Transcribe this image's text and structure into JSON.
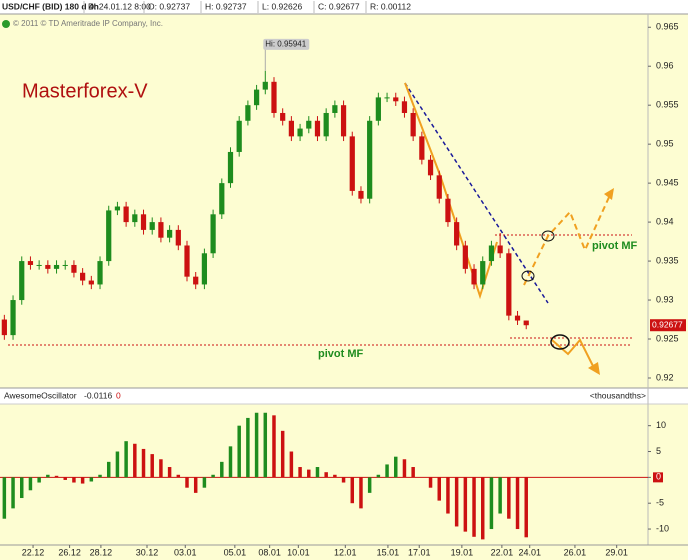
{
  "chart_data": [
    {
      "type": "candlestick",
      "title": "USD/CHF (BID) 180 d 4h",
      "info": [
        "D: 24.01.12 8:00",
        "O: 0.92737",
        "H: 0.92737",
        "L: 0.92626",
        "C: 0.92677",
        "R: 0.00112"
      ],
      "subtitle": "© 2011 © TD Ameritrade IP Company, Inc.",
      "annotations": [
        "Masterforex-V",
        "pivot MF",
        "pivot MF"
      ],
      "hi_label": "Hi: 0.95941",
      "last_label": "0.92677",
      "up_color": "#1e8c1e",
      "down_color": "#cc1111",
      "open": [
        0.9275,
        0.9255,
        0.93,
        0.935,
        0.9345,
        0.9345,
        0.934,
        0.9345,
        0.9345,
        0.9335,
        0.9325,
        0.932,
        0.935,
        0.9415,
        0.942,
        0.94,
        0.941,
        0.939,
        0.94,
        0.938,
        0.939,
        0.937,
        0.933,
        0.932,
        0.936,
        0.941,
        0.945,
        0.949,
        0.953,
        0.955,
        0.957,
        0.958,
        0.954,
        0.953,
        0.951,
        0.952,
        0.953,
        0.951,
        0.954,
        0.955,
        0.951,
        0.944,
        0.943,
        0.953,
        0.956,
        0.956,
        0.9555,
        0.954,
        0.951,
        0.948,
        0.946,
        0.943,
        0.94,
        0.937,
        0.934,
        0.932,
        0.935,
        0.937,
        0.936,
        0.928,
        0.92737
      ],
      "high": [
        0.9281,
        0.9306,
        0.9356,
        0.9356,
        0.9351,
        0.9351,
        0.9351,
        0.9351,
        0.9351,
        0.9341,
        0.9331,
        0.9356,
        0.9421,
        0.9426,
        0.9426,
        0.9416,
        0.9416,
        0.9406,
        0.9406,
        0.9396,
        0.9396,
        0.9376,
        0.9336,
        0.9366,
        0.9416,
        0.9456,
        0.9496,
        0.9536,
        0.9556,
        0.9576,
        0.95941,
        0.9586,
        0.9546,
        0.9536,
        0.9526,
        0.9536,
        0.9536,
        0.9546,
        0.9556,
        0.9556,
        0.9516,
        0.9446,
        0.9536,
        0.9566,
        0.9566,
        0.9566,
        0.9561,
        0.9546,
        0.9516,
        0.9486,
        0.9466,
        0.9436,
        0.9406,
        0.9376,
        0.9346,
        0.9356,
        0.9376,
        0.9386,
        0.9366,
        0.9286,
        0.92737
      ],
      "low": [
        0.9249,
        0.9249,
        0.9294,
        0.9339,
        0.9339,
        0.9334,
        0.9334,
        0.9339,
        0.9329,
        0.9319,
        0.9314,
        0.9314,
        0.9344,
        0.9409,
        0.9394,
        0.9394,
        0.9384,
        0.9384,
        0.9374,
        0.9374,
        0.9364,
        0.9324,
        0.9314,
        0.9314,
        0.9354,
        0.9404,
        0.9444,
        0.9484,
        0.9524,
        0.9544,
        0.9564,
        0.9534,
        0.9524,
        0.9504,
        0.9504,
        0.9514,
        0.9504,
        0.9504,
        0.9534,
        0.9504,
        0.9434,
        0.9424,
        0.9424,
        0.9524,
        0.9554,
        0.9549,
        0.9534,
        0.9504,
        0.9474,
        0.9454,
        0.9424,
        0.9394,
        0.9364,
        0.9334,
        0.9314,
        0.9314,
        0.9344,
        0.9354,
        0.9274,
        0.9268,
        0.92626
      ],
      "close": [
        0.9255,
        0.93,
        0.935,
        0.9345,
        0.9345,
        0.934,
        0.9345,
        0.9345,
        0.9335,
        0.9325,
        0.932,
        0.935,
        0.9415,
        0.942,
        0.94,
        0.941,
        0.939,
        0.94,
        0.938,
        0.939,
        0.937,
        0.933,
        0.932,
        0.936,
        0.941,
        0.945,
        0.949,
        0.953,
        0.955,
        0.957,
        0.958,
        0.954,
        0.953,
        0.951,
        0.952,
        0.953,
        0.951,
        0.954,
        0.955,
        0.951,
        0.944,
        0.943,
        0.953,
        0.956,
        0.956,
        0.9555,
        0.954,
        0.951,
        0.948,
        0.946,
        0.943,
        0.94,
        0.937,
        0.934,
        0.932,
        0.935,
        0.937,
        0.936,
        0.928,
        0.92737,
        0.92677
      ],
      "xlim": [
        -0.5,
        74
      ],
      "xticks": [
        {
          "value": 3.3,
          "label": "22.12"
        },
        {
          "value": 7.5,
          "label": "26.12"
        },
        {
          "value": 11.1,
          "label": "28.12"
        },
        {
          "value": 16.4,
          "label": "30.12"
        },
        {
          "value": 20.8,
          "label": "03.01"
        },
        {
          "value": 26.5,
          "label": "05.01"
        },
        {
          "value": 30.5,
          "label": "08.01"
        },
        {
          "value": 33.8,
          "label": "10.01"
        },
        {
          "value": 39.2,
          "label": "12.01"
        },
        {
          "value": 44.1,
          "label": "15.01"
        },
        {
          "value": 47.7,
          "label": "17.01"
        },
        {
          "value": 52.6,
          "label": "19.01"
        },
        {
          "value": 57.2,
          "label": "22.01"
        },
        {
          "value": 60.4,
          "label": "24.01"
        },
        {
          "value": 65.6,
          "label": "26.01"
        },
        {
          "value": 70.4,
          "label": "29.01"
        }
      ],
      "ylim": [
        0.9191,
        0.9667
      ],
      "yticks": [
        0.92,
        0.925,
        0.93,
        0.935,
        0.94,
        0.945,
        0.95,
        0.955,
        0.96,
        0.965
      ]
    },
    {
      "type": "bar",
      "title": "AwesomeOscillator",
      "info": [
        "-0.0116",
        "0"
      ],
      "units_label": "<thousandths>",
      "up_color": "#1e8c1e",
      "down_color": "#cc1111",
      "values": [
        -8,
        -6,
        -4,
        -2.5,
        -1,
        0.5,
        0.3,
        -0.5,
        -1,
        -1.2,
        -0.8,
        0.5,
        3,
        5,
        7,
        6.5,
        5.5,
        4.5,
        3.5,
        2,
        0.5,
        -2,
        -3,
        -2,
        0.5,
        3,
        6,
        10,
        11.5,
        12.5,
        12.5,
        12,
        9,
        5,
        2,
        1.5,
        2,
        1,
        0.5,
        -1,
        -5,
        -6,
        -3,
        0.5,
        2.5,
        4,
        3.5,
        2,
        0,
        -2,
        -4.5,
        -7,
        -9.5,
        -10.5,
        -11.5,
        -12,
        -10,
        -7,
        -8,
        -10,
        -11.6
      ],
      "ylim": [
        -12.7,
        14
      ],
      "yticks": [
        -10,
        -5,
        0,
        5,
        10
      ]
    }
  ]
}
